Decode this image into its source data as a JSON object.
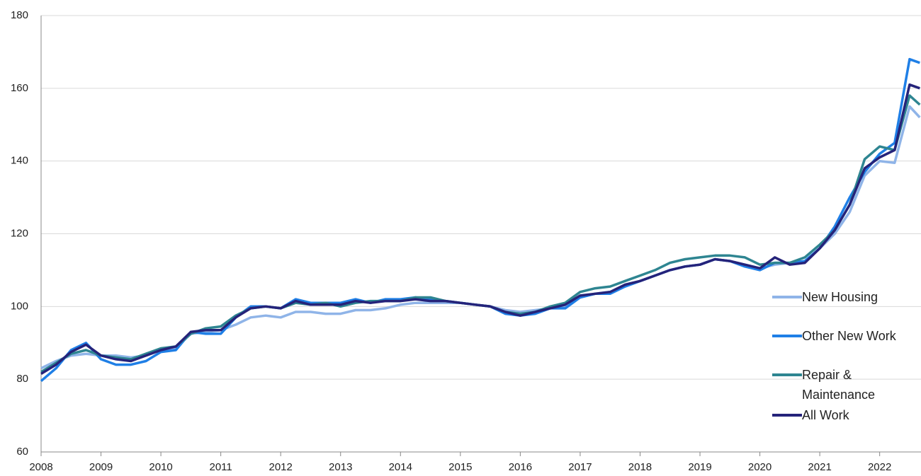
{
  "chart_data": {
    "type": "line",
    "x": [
      2008,
      2008.25,
      2008.5,
      2008.75,
      2009,
      2009.25,
      2009.5,
      2009.75,
      2010,
      2010.25,
      2010.5,
      2010.75,
      2011,
      2011.25,
      2011.5,
      2011.75,
      2012,
      2012.25,
      2012.5,
      2012.75,
      2013,
      2013.25,
      2013.5,
      2013.75,
      2014,
      2014.25,
      2014.5,
      2014.75,
      2015,
      2015.25,
      2015.5,
      2015.75,
      2016,
      2016.25,
      2016.5,
      2016.75,
      2017,
      2017.25,
      2017.5,
      2017.75,
      2018,
      2018.25,
      2018.5,
      2018.75,
      2019,
      2019.25,
      2019.5,
      2019.75,
      2020,
      2020.25,
      2020.5,
      2020.75,
      2021,
      2021.25,
      2021.5,
      2021.75,
      2022,
      2022.25,
      2022.5,
      2022.67
    ],
    "series": [
      {
        "name": "New Housing",
        "color": "#8fb4e8",
        "values": [
          83,
          85,
          86.5,
          87,
          86.5,
          86.5,
          86,
          86.5,
          88,
          88.5,
          92.5,
          93,
          93.5,
          95,
          97,
          97.5,
          97,
          98.5,
          98.5,
          98,
          98,
          99,
          99,
          99.5,
          100.5,
          101,
          101,
          101,
          101,
          100.5,
          100,
          99,
          98.5,
          99,
          99.5,
          100,
          102.5,
          103.5,
          104,
          105.5,
          107,
          108.5,
          110,
          111,
          111.5,
          113,
          112.5,
          111.5,
          110.5,
          111.5,
          112,
          112.5,
          116,
          120,
          126,
          136,
          140,
          139.5,
          155,
          152
        ]
      },
      {
        "name": "Other New Work",
        "color": "#1f7fe6",
        "values": [
          79.5,
          83,
          88,
          90,
          85.5,
          84,
          84,
          85,
          87.5,
          88,
          93,
          92.5,
          92.5,
          97,
          100,
          100,
          99.5,
          102,
          101,
          101,
          101,
          102,
          101,
          102,
          102,
          102.5,
          102,
          101.5,
          101,
          100.5,
          100,
          98,
          97.5,
          98,
          99.5,
          99.5,
          102.5,
          103.5,
          103.5,
          105.5,
          107,
          108.5,
          110,
          111,
          111.5,
          113,
          112.5,
          111,
          110,
          112,
          112,
          112.5,
          116,
          122,
          130,
          137,
          142,
          145,
          168,
          167
        ]
      },
      {
        "name": "Repair & Maintenance",
        "color": "#2e8591",
        "values": [
          82,
          84.5,
          87,
          88,
          86.5,
          86,
          85.5,
          87,
          88.5,
          89,
          92.5,
          94,
          94.5,
          97.5,
          99.5,
          100,
          99.5,
          101,
          100.5,
          101,
          100,
          101,
          101.5,
          101.5,
          101.5,
          102.5,
          102.5,
          101.5,
          101,
          100.5,
          100,
          98.5,
          98,
          98.5,
          100,
          101,
          104,
          105,
          105.5,
          107,
          108.5,
          110,
          112,
          113,
          113.5,
          114,
          114,
          113.5,
          111.5,
          112,
          112,
          113.5,
          117,
          121,
          128,
          140.5,
          144,
          143,
          158,
          155.5
        ]
      },
      {
        "name": "All Work",
        "color": "#25237a",
        "values": [
          81.5,
          84,
          87.5,
          89.5,
          86.5,
          85.5,
          85,
          86.5,
          88,
          89,
          93,
          93.5,
          93.5,
          97,
          99.5,
          100,
          99.5,
          101.5,
          100.5,
          100.5,
          100.5,
          101.5,
          101,
          101.5,
          101.5,
          102,
          101.5,
          101.5,
          101,
          100.5,
          100,
          98.5,
          97.5,
          98.5,
          99.5,
          100.5,
          103,
          103.5,
          104,
          106,
          107,
          108.5,
          110,
          111,
          111.5,
          113,
          112.5,
          111.5,
          110.5,
          113.5,
          111.5,
          112,
          116,
          121,
          128,
          138,
          141,
          143,
          161,
          160
        ]
      }
    ],
    "xlim": [
      2008,
      2022.69
    ],
    "xticks": [
      2008,
      2009,
      2010,
      2011,
      2012,
      2013,
      2014,
      2015,
      2016,
      2017,
      2018,
      2019,
      2020,
      2021,
      2022
    ],
    "ylim": [
      60,
      180
    ],
    "yticks": [
      60,
      80,
      100,
      120,
      140,
      160,
      180
    ],
    "grid": true,
    "legend": "right"
  }
}
